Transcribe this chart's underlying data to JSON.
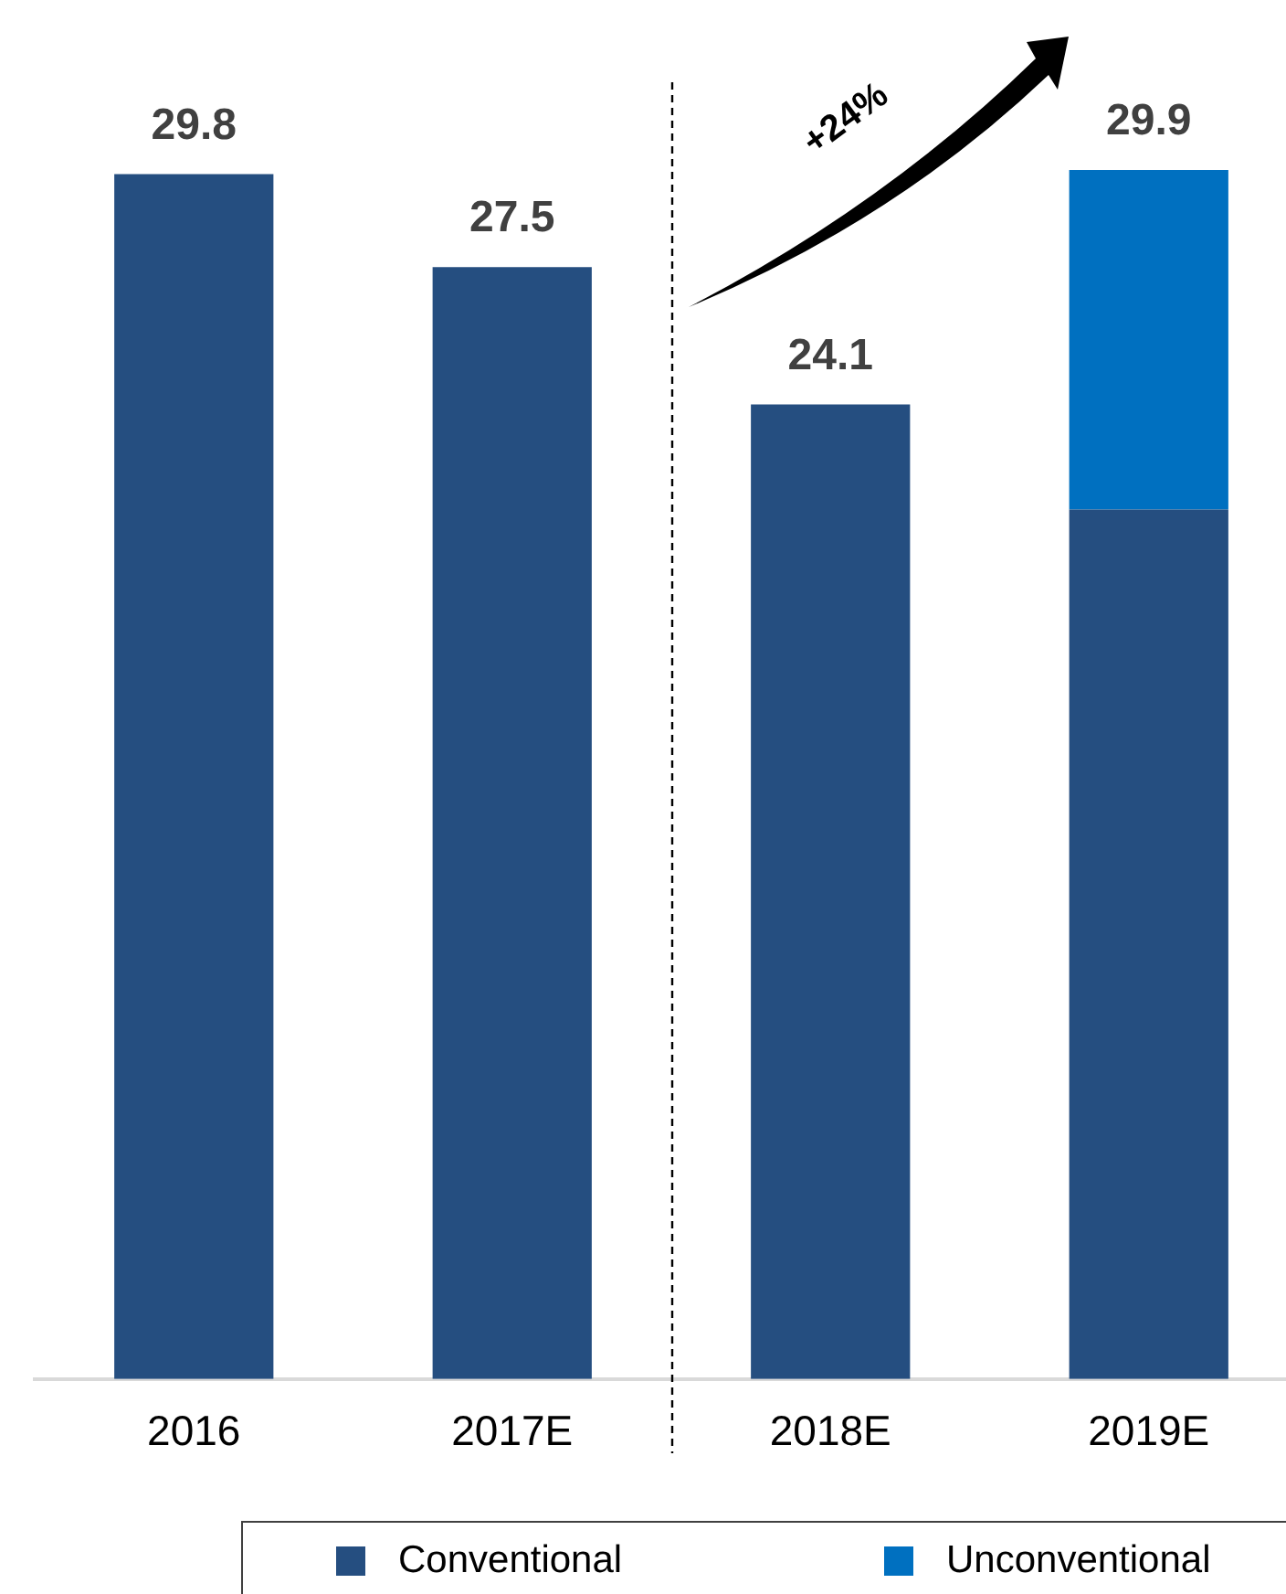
{
  "chart_data": {
    "type": "bar",
    "categories": [
      "2016",
      "2017E",
      "2018E",
      "2019E"
    ],
    "stacked": true,
    "series": [
      {
        "name": "Conventional",
        "color": "#254e80",
        "values": [
          29.8,
          27.5,
          24.1,
          21.5
        ],
        "value_labels": [
          "29.8",
          "27.5",
          "24.1",
          null
        ]
      },
      {
        "name": "Unconventional",
        "color": "#0070c0",
        "values": [
          null,
          null,
          null,
          8.4
        ]
      }
    ],
    "totals": [
      null,
      null,
      null,
      "29.9"
    ],
    "annotations": [
      "+24%"
    ],
    "legend": "bottom"
  }
}
